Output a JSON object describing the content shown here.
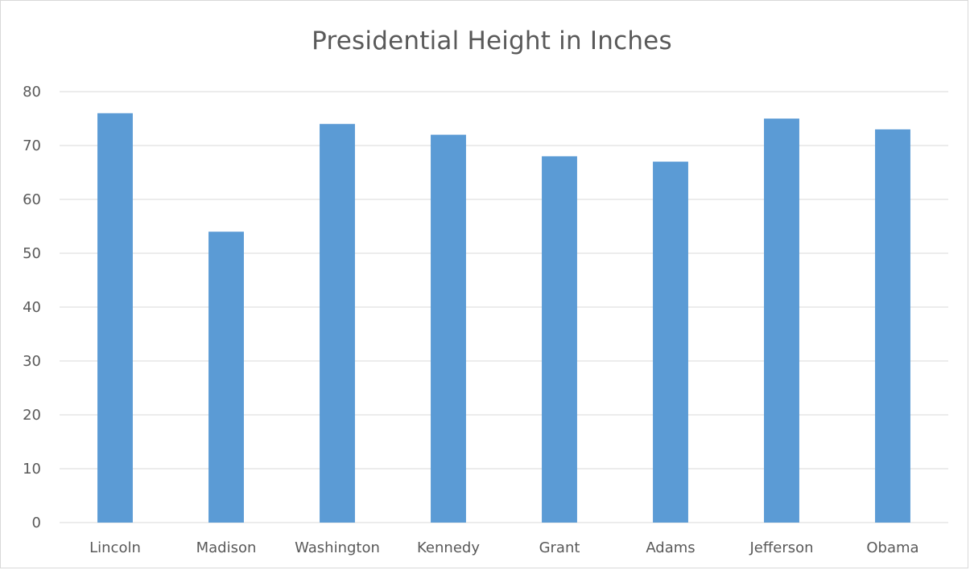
{
  "chart_data": {
    "type": "bar",
    "title": "Presidential Height in Inches",
    "xlabel": "",
    "ylabel": "",
    "categories": [
      "Lincoln",
      "Madison",
      "Washington",
      "Kennedy",
      "Grant",
      "Adams",
      "Jefferson",
      "Obama"
    ],
    "values": [
      76,
      54,
      74,
      72,
      68,
      67,
      75,
      73
    ],
    "ylim": [
      0,
      80
    ],
    "yticks": [
      0,
      10,
      20,
      30,
      40,
      50,
      60,
      70,
      80
    ],
    "grid": true,
    "legend": "none",
    "colors": {
      "bar": "#5b9bd5",
      "grid": "#d9d9d9",
      "text": "#595959"
    }
  }
}
